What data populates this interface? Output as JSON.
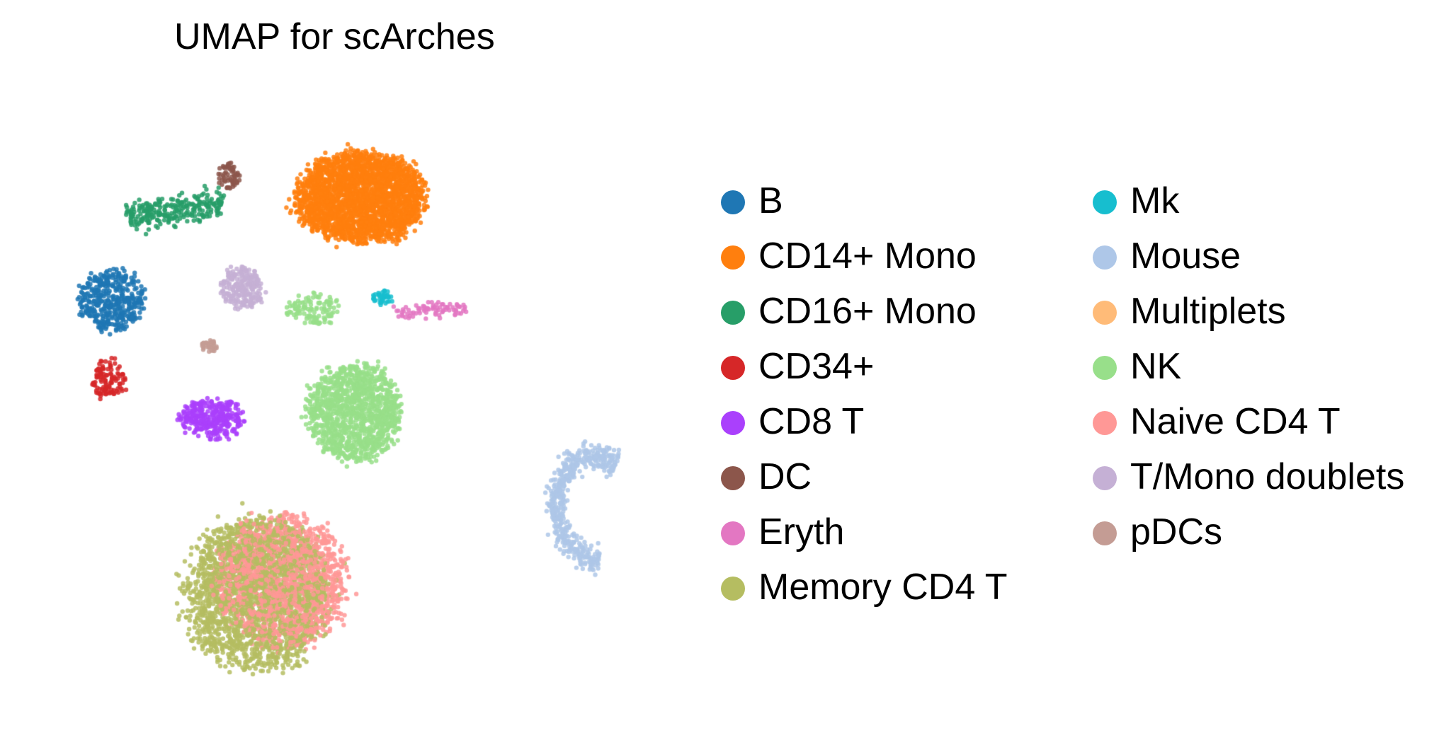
{
  "chart_data": {
    "type": "scatter",
    "title": "UMAP for scArches",
    "axes_visible": false,
    "grid": false,
    "legend_placement": "right, two columns",
    "xlim": [
      0,
      20
    ],
    "ylim": [
      0,
      20
    ],
    "categories": [
      {
        "name": "B",
        "color": "#1f77b4"
      },
      {
        "name": "CD14+ Mono",
        "color": "#ff7f0e"
      },
      {
        "name": "CD16+ Mono",
        "color": "#279e68"
      },
      {
        "name": "CD34+",
        "color": "#d62728"
      },
      {
        "name": "CD8 T",
        "color": "#aa40fc"
      },
      {
        "name": "DC",
        "color": "#8c564b"
      },
      {
        "name": "Eryth",
        "color": "#e377c2"
      },
      {
        "name": "Memory CD4 T",
        "color": "#b5bd61"
      },
      {
        "name": "Mk",
        "color": "#17becf"
      },
      {
        "name": "Mouse",
        "color": "#aec7e8"
      },
      {
        "name": "Multiplets",
        "color": "#ffbb78"
      },
      {
        "name": "NK",
        "color": "#98df8a"
      },
      {
        "name": "Naive CD4 T",
        "color": "#ff9896"
      },
      {
        "name": "T/Mono doublets",
        "color": "#c5b0d5"
      },
      {
        "name": "pDCs",
        "color": "#c49c94"
      }
    ],
    "clusters": [
      {
        "label": "CD14+ Mono",
        "cx": 10.1,
        "cy": 16.5,
        "sx": 1.8,
        "sy": 1.3,
        "n": 2600,
        "shape": "ellipse"
      },
      {
        "label": "CD16+ Mono",
        "cx": 4.2,
        "cy": 16.1,
        "sx": 1.2,
        "sy": 0.4,
        "n": 260,
        "shape": "band"
      },
      {
        "label": "DC",
        "cx": 5.9,
        "cy": 17.2,
        "sx": 0.3,
        "sy": 0.4,
        "n": 60,
        "shape": "ellipse"
      },
      {
        "label": "B",
        "cx": 2.2,
        "cy": 13.1,
        "sx": 0.9,
        "sy": 0.9,
        "n": 420,
        "shape": "ellipse"
      },
      {
        "label": "T/Mono doublets",
        "cx": 6.3,
        "cy": 13.5,
        "sx": 0.6,
        "sy": 0.6,
        "n": 230,
        "shape": "ellipse"
      },
      {
        "label": "NK",
        "cx": 8.6,
        "cy": 12.8,
        "sx": 0.7,
        "sy": 0.5,
        "n": 120,
        "shape": "ellipse"
      },
      {
        "label": "pDCs",
        "cx": 5.3,
        "cy": 11.6,
        "sx": 0.25,
        "sy": 0.2,
        "n": 35,
        "shape": "ellipse"
      },
      {
        "label": "CD34+",
        "cx": 2.1,
        "cy": 10.5,
        "sx": 0.5,
        "sy": 0.6,
        "n": 120,
        "shape": "ellipse"
      },
      {
        "label": "CD8 T",
        "cx": 5.4,
        "cy": 9.2,
        "sx": 0.9,
        "sy": 0.6,
        "n": 330,
        "shape": "ellipse"
      },
      {
        "label": "NK",
        "cx": 9.9,
        "cy": 9.4,
        "sx": 1.3,
        "sy": 1.4,
        "n": 1250,
        "shape": "ellipse"
      },
      {
        "label": "Eryth",
        "cx": 12.3,
        "cy": 12.8,
        "sx": 0.9,
        "sy": 0.2,
        "n": 80,
        "shape": "band"
      },
      {
        "label": "Mk",
        "cx": 10.8,
        "cy": 13.2,
        "sx": 0.3,
        "sy": 0.2,
        "n": 40,
        "shape": "ellipse"
      },
      {
        "label": "Mouse",
        "cx": 17.5,
        "cy": 6.3,
        "sx": 1.2,
        "sy": 1.7,
        "n": 520,
        "shape": "crescent"
      },
      {
        "label": "Memory CD4 T",
        "cx": 6.8,
        "cy": 3.4,
        "sx": 2.0,
        "sy": 2.2,
        "n": 2100,
        "shape": "ellipse"
      },
      {
        "label": "Naive CD4 T",
        "cx": 7.6,
        "cy": 3.8,
        "sx": 1.8,
        "sy": 1.9,
        "n": 1700,
        "shape": "ellipse"
      }
    ]
  }
}
